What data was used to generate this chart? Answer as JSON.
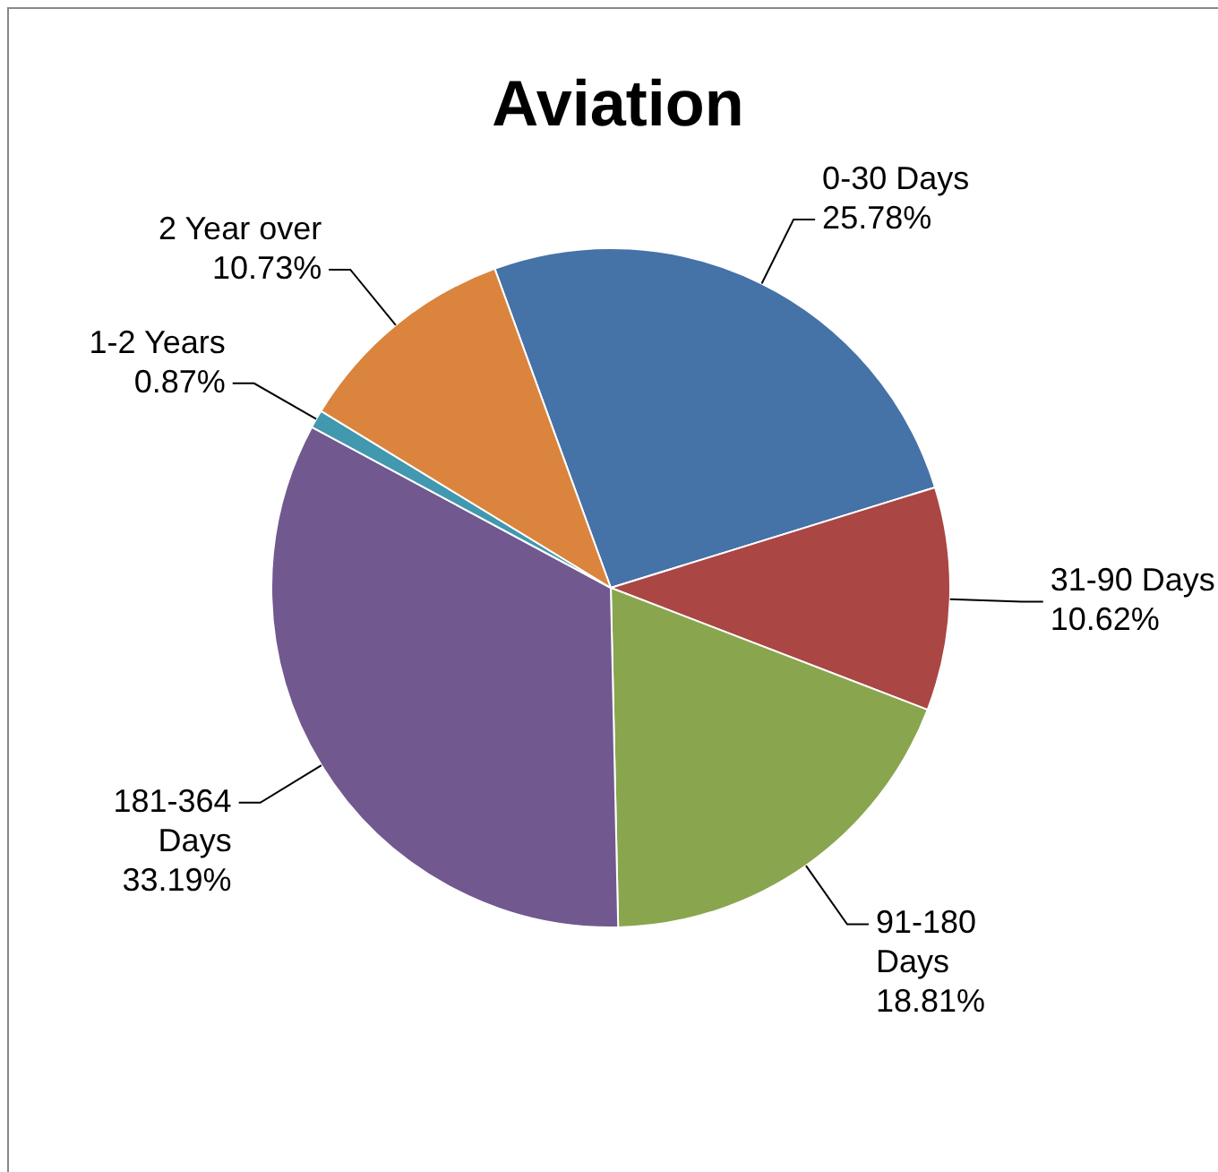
{
  "chart_data": {
    "type": "pie",
    "title": "Aviation",
    "categories": [
      "0-30 Days",
      "31-90 Days",
      "91-180 Days",
      "181-364 Days",
      "1-2 Years",
      "2 Year over"
    ],
    "values": [
      25.78,
      10.62,
      18.81,
      33.19,
      0.87,
      10.73
    ],
    "value_labels": [
      "25.78%",
      "10.62%",
      "18.81%",
      "33.19%",
      "0.87%",
      "10.73%"
    ],
    "colors": [
      "#4572a7",
      "#aa4643",
      "#89a54e",
      "#71588f",
      "#4198af",
      "#db843d"
    ],
    "legend": false
  }
}
